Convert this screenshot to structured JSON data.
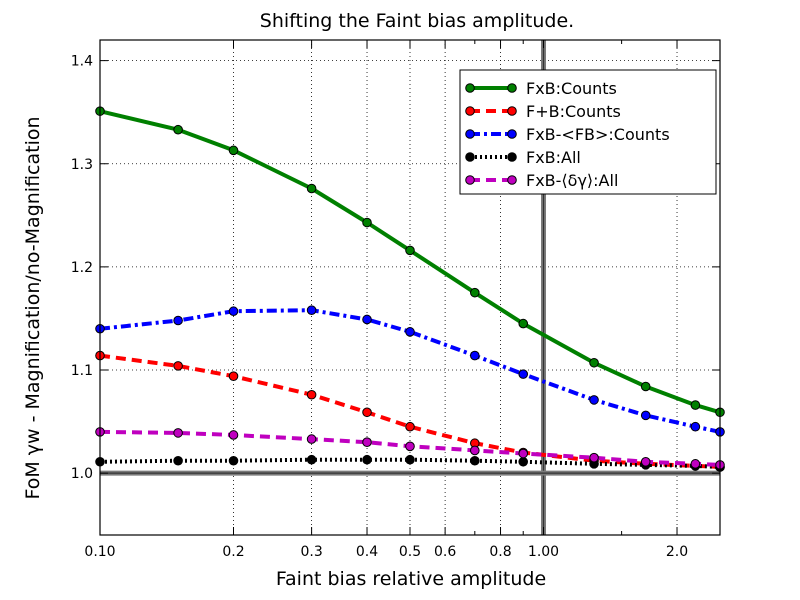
{
  "chart_data": {
    "type": "line",
    "title": "Shifting the Faint bias amplitude.",
    "xlabel": "Faint bias relative amplitude",
    "ylabel": "FoM γw - Magnification/no-Magnification",
    "xscale": "log",
    "xlim": [
      0.1,
      2.5
    ],
    "ylim": [
      0.94,
      1.42
    ],
    "x_ticks": [
      0.1,
      0.2,
      0.3,
      0.4,
      0.5,
      0.6,
      0.8,
      1.0,
      2.0
    ],
    "x_tick_labels": [
      "0.10",
      "0.2",
      "0.3",
      "0.4",
      "0.5",
      "0.6",
      "0.8",
      "1.00",
      "2.0"
    ],
    "y_ticks": [
      1.0,
      1.1,
      1.2,
      1.3,
      1.4
    ],
    "y_tick_labels": [
      "1.0",
      "1.1",
      "1.2",
      "1.3",
      "1.4"
    ],
    "grid": true,
    "legend_position": "top-right",
    "reference_lines": {
      "x": 1.0,
      "y": 1.0
    },
    "x": [
      0.1,
      0.15,
      0.2,
      0.3,
      0.4,
      0.5,
      0.7,
      0.9,
      1.3,
      1.7,
      2.2,
      2.5
    ],
    "series": [
      {
        "name": "FxB:Counts",
        "color": "#008000",
        "style": "solid",
        "values": [
          1.351,
          1.333,
          1.313,
          1.276,
          1.243,
          1.216,
          1.175,
          1.145,
          1.107,
          1.084,
          1.066,
          1.059
        ]
      },
      {
        "name": "F+B:Counts",
        "color": "#ff0000",
        "style": "dashed",
        "values": [
          1.114,
          1.104,
          1.094,
          1.076,
          1.059,
          1.045,
          1.029,
          1.02,
          1.012,
          1.009,
          1.007,
          1.006
        ]
      },
      {
        "name": "FxB-<FB>:Counts",
        "color": "#0000ff",
        "style": "dashdot",
        "values": [
          1.14,
          1.148,
          1.157,
          1.158,
          1.149,
          1.137,
          1.114,
          1.096,
          1.071,
          1.056,
          1.045,
          1.04
        ]
      },
      {
        "name": "FxB:All",
        "color": "#000000",
        "style": "dotted",
        "values": [
          1.011,
          1.012,
          1.012,
          1.013,
          1.013,
          1.013,
          1.012,
          1.011,
          1.009,
          1.008,
          1.007,
          1.006
        ]
      },
      {
        "name": "FxB-⟨δγ⟩:All",
        "color": "#bf00bf",
        "style": "dashed",
        "values": [
          1.04,
          1.039,
          1.037,
          1.033,
          1.03,
          1.026,
          1.022,
          1.019,
          1.015,
          1.011,
          1.009,
          1.008
        ]
      }
    ]
  }
}
